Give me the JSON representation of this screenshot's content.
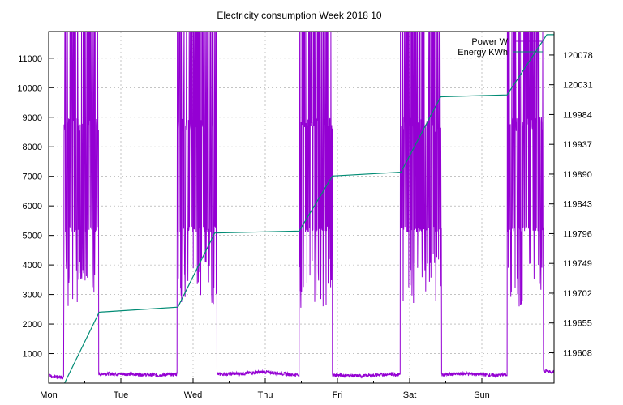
{
  "chart_data": {
    "type": "line",
    "title": "Electricity consumption Week 2018 10",
    "xlabel": "",
    "ylabel": "",
    "y2label": "",
    "x_unit": "days",
    "xlim": [
      0,
      7
    ],
    "x_ticks": [
      {
        "v": 0,
        "label": "Mon"
      },
      {
        "v": 1,
        "label": "Tue"
      },
      {
        "v": 2,
        "label": "Wed"
      },
      {
        "v": 3,
        "label": "Thu"
      },
      {
        "v": 4,
        "label": "Fri"
      },
      {
        "v": 5,
        "label": "Sat"
      },
      {
        "v": 6,
        "label": "Sun"
      }
    ],
    "ylim": [
      0,
      11900
    ],
    "y_ticks": [
      1000,
      2000,
      3000,
      4000,
      5000,
      6000,
      7000,
      8000,
      9000,
      10000,
      11000
    ],
    "y2lim": [
      119560,
      120115
    ],
    "y2_ticks": [
      119608,
      119655,
      119702,
      119749,
      119796,
      119843,
      119890,
      119937,
      119984,
      120031,
      120078
    ],
    "grid": true,
    "legend_position": "top-right",
    "series": [
      {
        "name": "Power W",
        "axis": "y1",
        "color": "#9400d3",
        "baseline": [
          [
            0.0,
            380
          ],
          [
            0.03,
            220
          ],
          [
            0.2,
            200
          ],
          [
            0.7,
            320
          ],
          [
            1.2,
            300
          ],
          [
            1.5,
            270
          ],
          [
            1.8,
            300
          ],
          [
            2.35,
            300
          ],
          [
            2.7,
            330
          ],
          [
            3.0,
            380
          ],
          [
            3.4,
            280
          ],
          [
            3.95,
            270
          ],
          [
            4.3,
            240
          ],
          [
            4.7,
            300
          ],
          [
            5.45,
            290
          ],
          [
            5.8,
            320
          ],
          [
            6.2,
            260
          ],
          [
            6.85,
            420
          ],
          [
            7.0,
            380
          ]
        ],
        "bursts": [
          {
            "start": 0.21,
            "end": 0.69,
            "max": 11900,
            "min": 2600
          },
          {
            "start": 1.78,
            "end": 2.33,
            "max": 11900,
            "min": 2600
          },
          {
            "start": 3.47,
            "end": 3.93,
            "max": 11900,
            "min": 2550
          },
          {
            "start": 4.87,
            "end": 5.44,
            "max": 11900,
            "min": 2700
          },
          {
            "start": 6.35,
            "end": 6.85,
            "max": 11900,
            "min": 2400
          }
        ]
      },
      {
        "name": "Energy KWh",
        "axis": "y2",
        "color": "#008b74",
        "points": [
          [
            0.22,
            119560
          ],
          [
            0.7,
            119672
          ],
          [
            1.79,
            119680
          ],
          [
            2.3,
            119797
          ],
          [
            3.47,
            119800
          ],
          [
            3.93,
            119887
          ],
          [
            4.88,
            119893
          ],
          [
            5.43,
            120012
          ],
          [
            6.35,
            120015
          ],
          [
            6.9,
            120110
          ],
          [
            7.0,
            120110
          ]
        ]
      }
    ]
  }
}
